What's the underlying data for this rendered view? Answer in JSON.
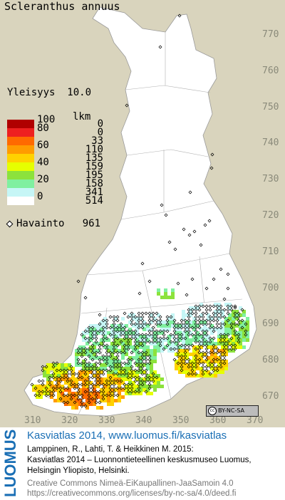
{
  "species": "Scleranthus annuus",
  "frequency": {
    "label": "Yleisyys",
    "value": "10.0"
  },
  "legend": {
    "count_header": "lkm",
    "classes": [
      {
        "value": "100",
        "count": "0",
        "color": "#b00000"
      },
      {
        "value": "80",
        "count": "0",
        "color": "#ee2020"
      },
      {
        "value": "",
        "count": "33",
        "color": "#ff6a00"
      },
      {
        "value": "60",
        "count": "110",
        "color": "#ff9c00"
      },
      {
        "value": "",
        "count": "135",
        "color": "#ffd200"
      },
      {
        "value": "40",
        "count": "159",
        "color": "#e6ff00"
      },
      {
        "value": "",
        "count": "195",
        "color": "#8ce23c"
      },
      {
        "value": "20",
        "count": "158",
        "color": "#80f0a0"
      },
      {
        "value": "",
        "count": "341",
        "color": "#c6f6f6"
      },
      {
        "value": "0",
        "count": "514",
        "color": "#ffffff"
      }
    ]
  },
  "observations": {
    "label": "Havainto",
    "count": "961",
    "icon": "diamond-icon"
  },
  "axes": {
    "y_ticks": [
      "770",
      "760",
      "750",
      "740",
      "730",
      "720",
      "710",
      "700",
      "690",
      "680",
      "670"
    ],
    "x_ticks": [
      "310",
      "320",
      "330",
      "340",
      "350",
      "360",
      "370"
    ]
  },
  "license_badge": "BY-NC-SA",
  "footer": {
    "logo": "LUOMUS",
    "title": "Kasviatlas 2014, www.luomus.fi/kasviatlas",
    "citation": [
      "Lamppinen, R., Lahti, T. & Heikkinen M. 2015:",
      "Kasviatlas 2014 – Luonnontieteellinen keskusmuseo Luomus,",
      "Helsingin Yliopisto, Helsinki."
    ],
    "license": [
      "Creative Commons Nimeä-EiKaupallinen-JaaSamoin 4.0",
      "https://creativecommons.org/licenses/by-nc-sa/4.0/deed.fi"
    ]
  },
  "colors": {
    "background": "#d9d4bd",
    "land": "#ffffff",
    "footer_title": "#1a6fb5"
  }
}
